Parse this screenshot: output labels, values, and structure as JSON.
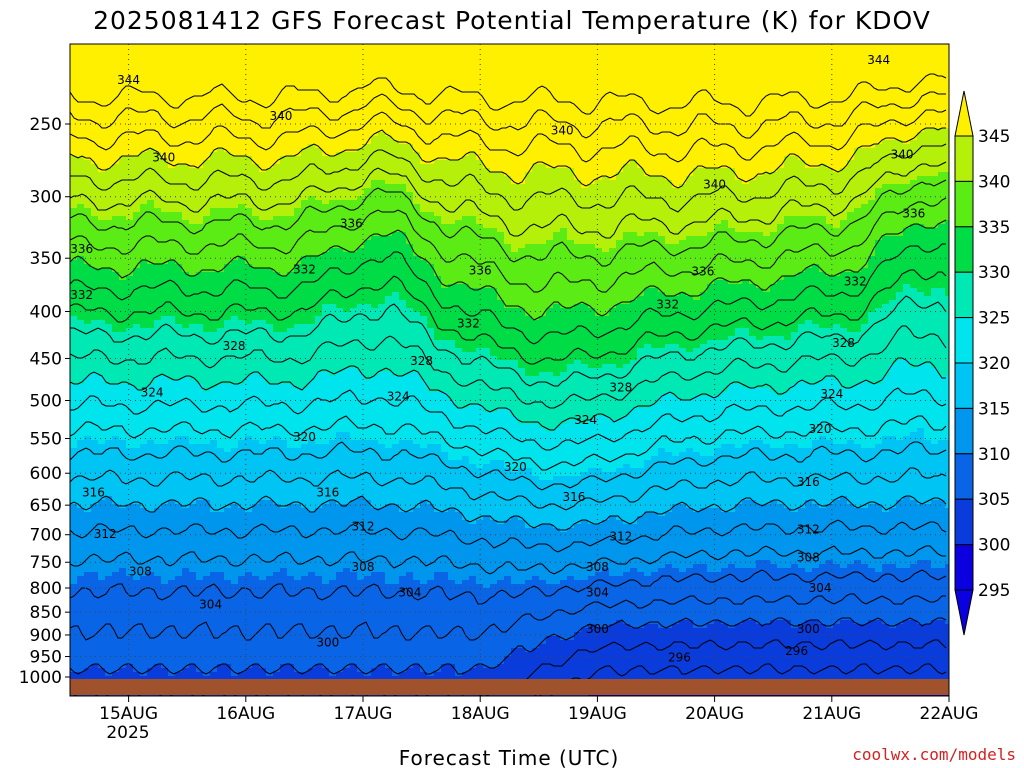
{
  "chart_data": {
    "type": "contour",
    "title": "2025081412 GFS Forecast Potential Temperature (K) for KDOV",
    "xlabel": "Forecast Time (UTC)",
    "ylabel": "",
    "credit": "coolwx.com/models",
    "x_ticks": [
      "15AUG",
      "16AUG",
      "17AUG",
      "18AUG",
      "19AUG",
      "20AUG",
      "21AUG",
      "22AUG"
    ],
    "x_sublabel": "2025",
    "x_range_days": [
      14.5,
      22.0
    ],
    "y_ticks": [
      "250",
      "300",
      "350",
      "400",
      "450",
      "500",
      "550",
      "600",
      "650",
      "700",
      "750",
      "800",
      "850",
      "900",
      "950",
      "1000"
    ],
    "y_range_hpa": [
      200,
      1000
    ],
    "y_scale": "log-pressure",
    "colorbar": {
      "levels": [
        "295",
        "300",
        "305",
        "310",
        "315",
        "320",
        "325",
        "330",
        "335",
        "340",
        "345"
      ],
      "colors": [
        "#0a00e0",
        "#0a3cdc",
        "#0a64e6",
        "#0096ee",
        "#00c4f4",
        "#00e4ee",
        "#00e8b4",
        "#00dc46",
        "#5aec14",
        "#b4f00a",
        "#fff000"
      ],
      "extend": "both"
    },
    "contour_labels": [
      {
        "text": "344",
        "day": 15.0,
        "p": 224
      },
      {
        "text": "344",
        "day": 21.4,
        "p": 213
      },
      {
        "text": "340",
        "day": 16.3,
        "p": 245
      },
      {
        "text": "340",
        "day": 15.3,
        "p": 272
      },
      {
        "text": "340",
        "day": 18.7,
        "p": 254
      },
      {
        "text": "340",
        "day": 20.0,
        "p": 291
      },
      {
        "text": "340",
        "day": 21.6,
        "p": 270
      },
      {
        "text": "336",
        "day": 16.9,
        "p": 321
      },
      {
        "text": "336",
        "day": 14.6,
        "p": 342
      },
      {
        "text": "336",
        "day": 21.7,
        "p": 313
      },
      {
        "text": "336",
        "day": 18.0,
        "p": 361
      },
      {
        "text": "336",
        "day": 19.9,
        "p": 362
      },
      {
        "text": "332",
        "day": 14.6,
        "p": 384
      },
      {
        "text": "332",
        "day": 16.5,
        "p": 360
      },
      {
        "text": "332",
        "day": 17.9,
        "p": 412
      },
      {
        "text": "332",
        "day": 19.6,
        "p": 393
      },
      {
        "text": "332",
        "day": 21.2,
        "p": 371
      },
      {
        "text": "328",
        "day": 15.9,
        "p": 436
      },
      {
        "text": "328",
        "day": 17.5,
        "p": 453
      },
      {
        "text": "328",
        "day": 19.2,
        "p": 484
      },
      {
        "text": "328",
        "day": 21.1,
        "p": 433
      },
      {
        "text": "324",
        "day": 15.2,
        "p": 490
      },
      {
        "text": "324",
        "day": 17.3,
        "p": 495
      },
      {
        "text": "324",
        "day": 18.9,
        "p": 525
      },
      {
        "text": "324",
        "day": 21.0,
        "p": 492
      },
      {
        "text": "320",
        "day": 16.5,
        "p": 548
      },
      {
        "text": "320",
        "day": 18.3,
        "p": 591
      },
      {
        "text": "320",
        "day": 20.9,
        "p": 537
      },
      {
        "text": "316",
        "day": 14.7,
        "p": 630
      },
      {
        "text": "316",
        "day": 16.7,
        "p": 630
      },
      {
        "text": "316",
        "day": 18.8,
        "p": 637
      },
      {
        "text": "316",
        "day": 20.8,
        "p": 613
      },
      {
        "text": "312",
        "day": 14.8,
        "p": 699
      },
      {
        "text": "312",
        "day": 17.0,
        "p": 686
      },
      {
        "text": "312",
        "day": 19.2,
        "p": 703
      },
      {
        "text": "312",
        "day": 20.8,
        "p": 691
      },
      {
        "text": "308",
        "day": 15.1,
        "p": 768
      },
      {
        "text": "308",
        "day": 17.0,
        "p": 759
      },
      {
        "text": "308",
        "day": 19.0,
        "p": 759
      },
      {
        "text": "308",
        "day": 20.8,
        "p": 741
      },
      {
        "text": "304",
        "day": 15.7,
        "p": 834
      },
      {
        "text": "304",
        "day": 17.4,
        "p": 809
      },
      {
        "text": "304",
        "day": 19.0,
        "p": 809
      },
      {
        "text": "304",
        "day": 20.9,
        "p": 800
      },
      {
        "text": "300",
        "day": 16.7,
        "p": 917
      },
      {
        "text": "300",
        "day": 19.0,
        "p": 887
      },
      {
        "text": "300",
        "day": 20.8,
        "p": 887
      },
      {
        "text": "296",
        "day": 19.7,
        "p": 952
      },
      {
        "text": "296",
        "day": 20.7,
        "p": 937
      }
    ],
    "ground_color": "#a0522d",
    "grid": "dotted",
    "legend": "colorbar-right"
  }
}
